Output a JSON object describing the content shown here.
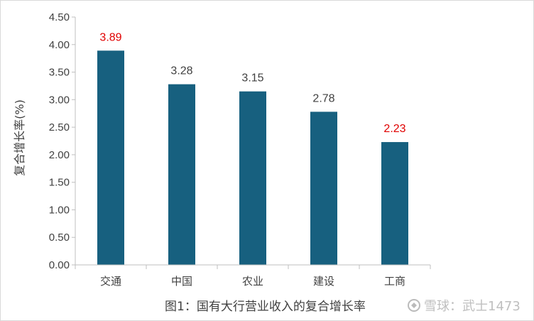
{
  "chart_data": {
    "type": "bar",
    "categories": [
      "交通",
      "中国",
      "农业",
      "建设",
      "工商"
    ],
    "values": [
      3.89,
      3.28,
      3.15,
      2.78,
      2.23
    ],
    "data_labels": [
      "3.89",
      "3.28",
      "3.15",
      "2.78",
      "2.23"
    ],
    "label_colors": [
      "#e00000",
      "#404040",
      "#404040",
      "#404040",
      "#e00000"
    ],
    "ylabel": "复合增长率(%)",
    "ylim": [
      0,
      4.5
    ],
    "yticks": [
      "0.00",
      "0.50",
      "1.00",
      "1.50",
      "2.00",
      "2.50",
      "3.00",
      "3.50",
      "4.00",
      "4.50"
    ],
    "bar_color": "#17607f",
    "grid": false,
    "legend": "none"
  },
  "caption": "图1：国有大行营业收入的复合增长率",
  "watermark": "雪球：武士1473"
}
